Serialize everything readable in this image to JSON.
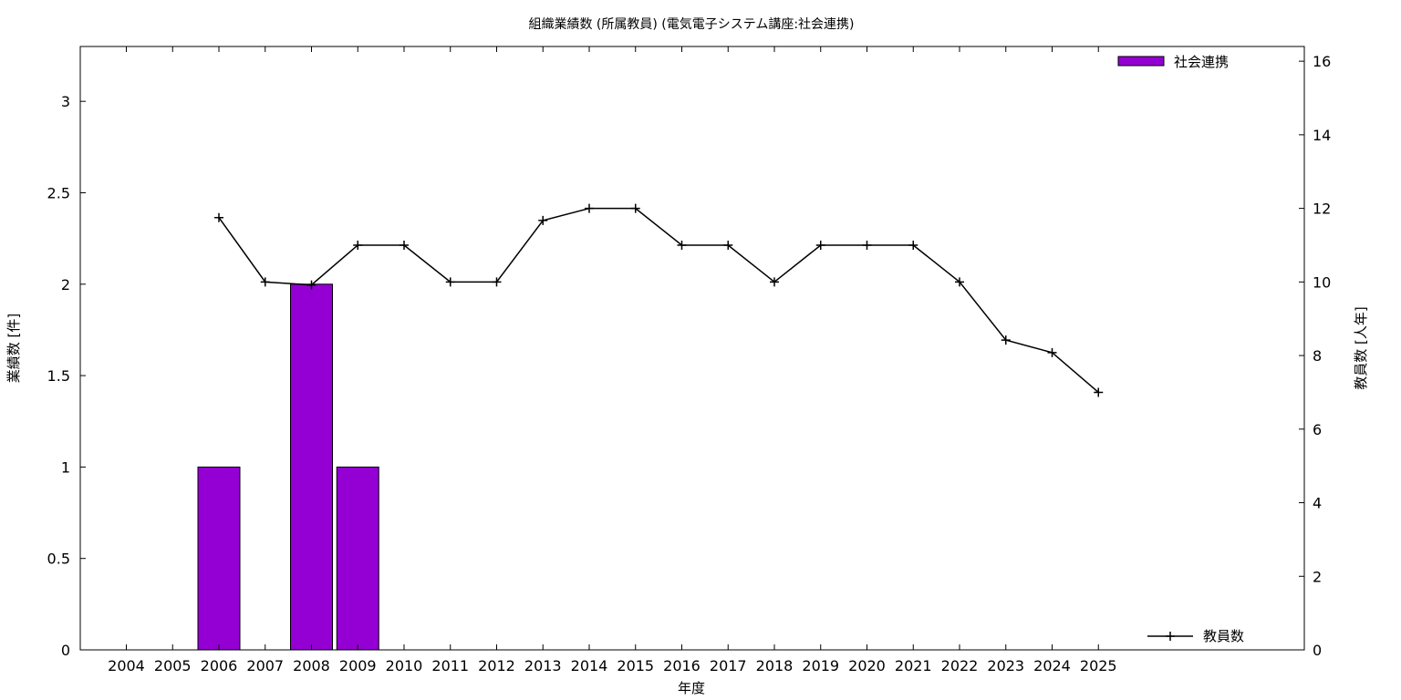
{
  "chart_data": {
    "type": "bar",
    "title": "組織業績数 (所属教員) (電気電子システム講座:社会連携)",
    "xlabel": "年度",
    "ylabel": "業績数 [件]",
    "y2label": "教員数 [人年]",
    "categories": [
      "2004",
      "2005",
      "2006",
      "2007",
      "2008",
      "2009",
      "2010",
      "2011",
      "2012",
      "2013",
      "2014",
      "2015",
      "2016",
      "2017",
      "2018",
      "2019",
      "2020",
      "2021",
      "2022",
      "2023",
      "2024",
      "2025"
    ],
    "ylim": [
      0,
      3.3
    ],
    "yticks": [
      "0",
      "0.5",
      "1",
      "1.5",
      "2",
      "2.5",
      "3"
    ],
    "y2lim": [
      0,
      16.4
    ],
    "y2ticks": [
      "0",
      "2",
      "4",
      "6",
      "8",
      "10",
      "12",
      "14",
      "16"
    ],
    "grid": false,
    "legend_placement": "top-right (bars), bottom-right (line)",
    "series": [
      {
        "name": "社会連携",
        "type": "bar",
        "axis": "left",
        "color": "#9400d3",
        "values": [
          0,
          0,
          1,
          0,
          2,
          1,
          0,
          0,
          0,
          0,
          0,
          0,
          0,
          0,
          0,
          0,
          0,
          0,
          0,
          0,
          0,
          0
        ]
      },
      {
        "name": "教員数",
        "type": "line",
        "axis": "right",
        "color": "#000000",
        "values": [
          null,
          null,
          11.75,
          10,
          9.92,
          11,
          11,
          10,
          10,
          11.67,
          12,
          12,
          11,
          11,
          10,
          11,
          11,
          11,
          10,
          8.42,
          8.08,
          7
        ]
      }
    ]
  }
}
